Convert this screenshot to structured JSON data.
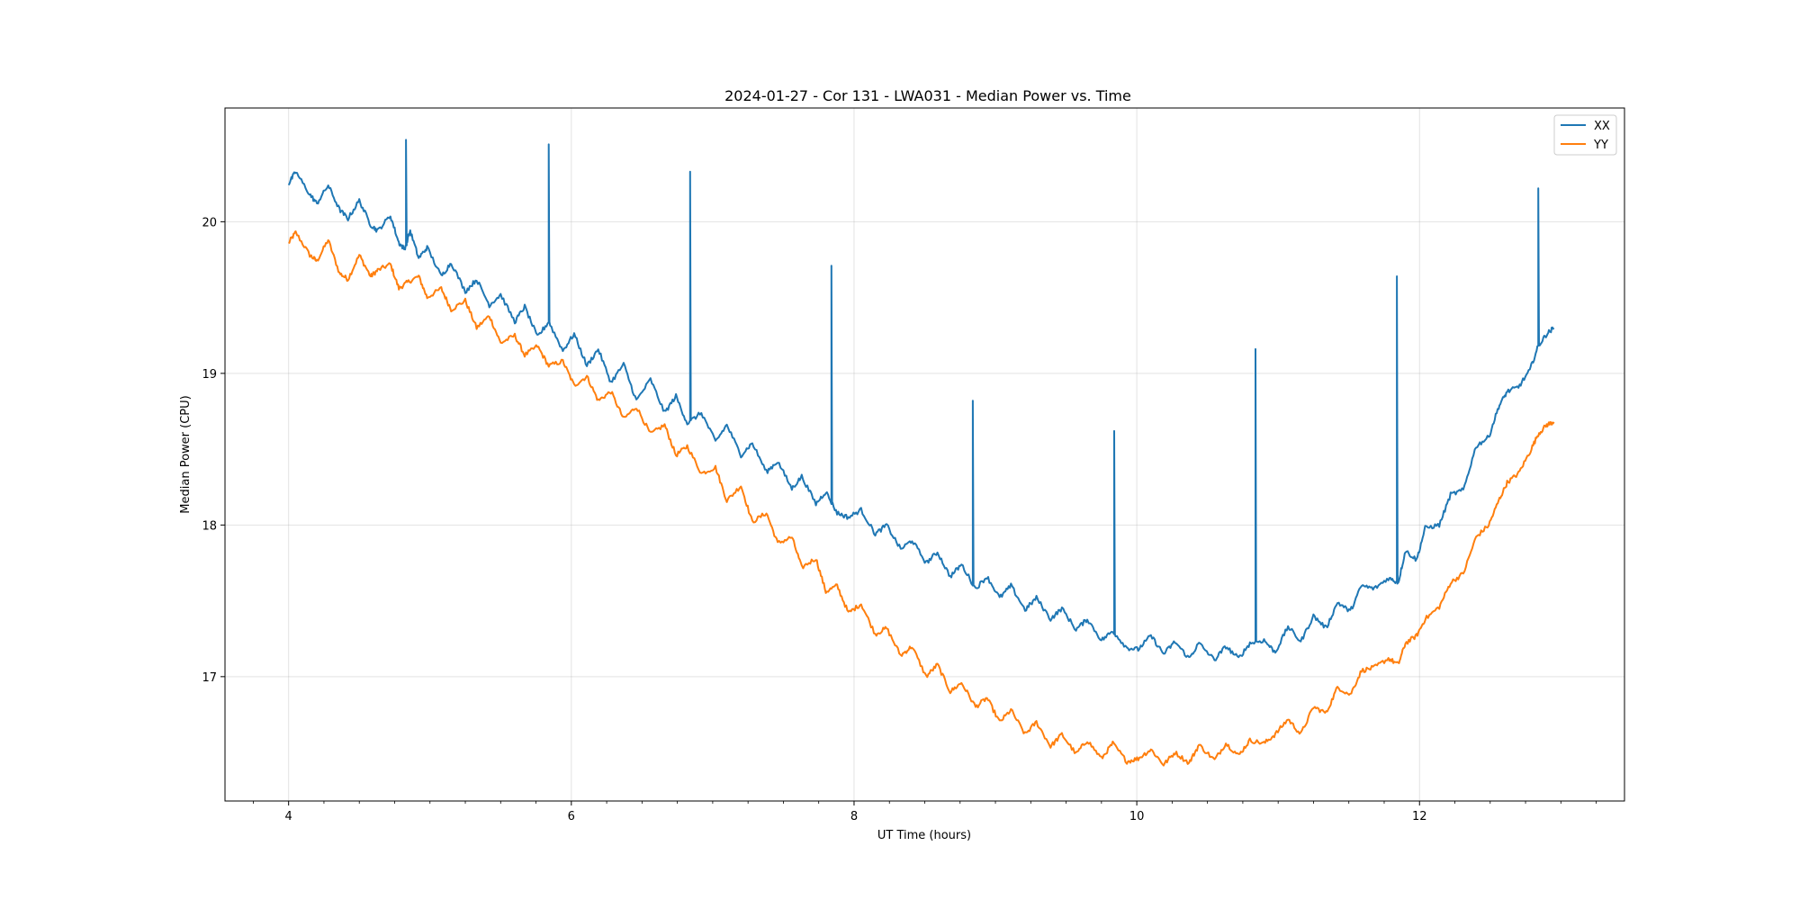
{
  "chart_data": {
    "type": "line",
    "title": "2024-01-27 - Cor 131 - LWA031 - Median Power vs. Time",
    "xlabel": "UT Time (hours)",
    "ylabel": "Median Power (CPU)",
    "xlim": [
      3.55,
      13.45
    ],
    "ylim": [
      16.18,
      20.75
    ],
    "xticks": [
      4,
      6,
      8,
      10,
      12
    ],
    "xtick_labels": [
      "4",
      "6",
      "8",
      "10",
      "12"
    ],
    "yticks": [
      17,
      18,
      19,
      20
    ],
    "ytick_labels": [
      "17",
      "18",
      "19",
      "20"
    ],
    "grid": true,
    "legend_position": "top-right",
    "series": [
      {
        "name": "XX",
        "color": "#1f77b4",
        "points": [
          [
            4.0,
            20.25
          ],
          [
            4.05,
            20.33
          ],
          [
            4.15,
            20.18
          ],
          [
            4.2,
            20.12
          ],
          [
            4.28,
            20.24
          ],
          [
            4.36,
            20.08
          ],
          [
            4.42,
            20.02
          ],
          [
            4.5,
            20.14
          ],
          [
            4.58,
            19.98
          ],
          [
            4.63,
            19.94
          ],
          [
            4.72,
            20.04
          ],
          [
            4.78,
            19.86
          ],
          [
            4.82,
            19.82
          ],
          [
            4.86,
            19.94
          ],
          [
            4.92,
            19.76
          ],
          [
            4.98,
            19.83
          ],
          [
            5.08,
            19.64
          ],
          [
            5.15,
            19.73
          ],
          [
            5.25,
            19.54
          ],
          [
            5.33,
            19.62
          ],
          [
            5.42,
            19.45
          ],
          [
            5.5,
            19.52
          ],
          [
            5.6,
            19.34
          ],
          [
            5.67,
            19.44
          ],
          [
            5.76,
            19.24
          ],
          [
            5.84,
            19.34
          ],
          [
            5.94,
            19.15
          ],
          [
            6.02,
            19.26
          ],
          [
            6.11,
            19.05
          ],
          [
            6.19,
            19.16
          ],
          [
            6.28,
            18.94
          ],
          [
            6.37,
            19.06
          ],
          [
            6.46,
            18.82
          ],
          [
            6.56,
            18.96
          ],
          [
            6.66,
            18.74
          ],
          [
            6.74,
            18.85
          ],
          [
            6.82,
            18.67
          ],
          [
            6.92,
            18.74
          ],
          [
            7.02,
            18.55
          ],
          [
            7.1,
            18.66
          ],
          [
            7.2,
            18.46
          ],
          [
            7.28,
            18.54
          ],
          [
            7.38,
            18.35
          ],
          [
            7.46,
            18.42
          ],
          [
            7.56,
            18.24
          ],
          [
            7.63,
            18.32
          ],
          [
            7.73,
            18.14
          ],
          [
            7.8,
            18.22
          ],
          [
            7.88,
            18.08
          ],
          [
            7.96,
            18.05
          ],
          [
            8.05,
            18.1
          ],
          [
            8.15,
            17.94
          ],
          [
            8.23,
            18.0
          ],
          [
            8.33,
            17.84
          ],
          [
            8.41,
            17.9
          ],
          [
            8.51,
            17.75
          ],
          [
            8.59,
            17.82
          ],
          [
            8.68,
            17.66
          ],
          [
            8.76,
            17.74
          ],
          [
            8.86,
            17.58
          ],
          [
            8.94,
            17.66
          ],
          [
            9.03,
            17.52
          ],
          [
            9.11,
            17.6
          ],
          [
            9.21,
            17.44
          ],
          [
            9.29,
            17.52
          ],
          [
            9.39,
            17.38
          ],
          [
            9.47,
            17.45
          ],
          [
            9.57,
            17.31
          ],
          [
            9.65,
            17.38
          ],
          [
            9.75,
            17.24
          ],
          [
            9.83,
            17.3
          ],
          [
            9.93,
            17.19
          ],
          [
            10.01,
            17.18
          ],
          [
            10.1,
            17.27
          ],
          [
            10.19,
            17.15
          ],
          [
            10.27,
            17.23
          ],
          [
            10.37,
            17.12
          ],
          [
            10.44,
            17.22
          ],
          [
            10.55,
            17.11
          ],
          [
            10.63,
            17.2
          ],
          [
            10.72,
            17.12
          ],
          [
            10.8,
            17.22
          ],
          [
            10.9,
            17.24
          ],
          [
            10.98,
            17.16
          ],
          [
            11.07,
            17.33
          ],
          [
            11.16,
            17.23
          ],
          [
            11.25,
            17.4
          ],
          [
            11.34,
            17.32
          ],
          [
            11.42,
            17.49
          ],
          [
            11.51,
            17.43
          ],
          [
            11.59,
            17.6
          ],
          [
            11.68,
            17.58
          ],
          [
            11.78,
            17.65
          ],
          [
            11.85,
            17.62
          ],
          [
            11.9,
            17.83
          ],
          [
            11.98,
            17.77
          ],
          [
            12.04,
            17.98
          ],
          [
            12.14,
            18.0
          ],
          [
            12.22,
            18.2
          ],
          [
            12.31,
            18.23
          ],
          [
            12.4,
            18.52
          ],
          [
            12.49,
            18.58
          ],
          [
            12.56,
            18.78
          ],
          [
            12.62,
            18.88
          ],
          [
            12.7,
            18.91
          ],
          [
            12.78,
            19.02
          ],
          [
            12.84,
            19.18
          ],
          [
            12.9,
            19.26
          ],
          [
            12.95,
            19.3
          ]
        ],
        "spikes": [
          [
            4.83,
            20.54
          ],
          [
            5.84,
            20.51
          ],
          [
            6.84,
            20.33
          ],
          [
            7.84,
            19.71
          ],
          [
            8.84,
            18.82
          ],
          [
            9.84,
            18.62
          ],
          [
            10.84,
            19.16
          ],
          [
            11.84,
            19.64
          ],
          [
            12.84,
            20.22
          ]
        ]
      },
      {
        "name": "YY",
        "color": "#ff7f0e",
        "points": [
          [
            4.0,
            19.86
          ],
          [
            4.05,
            19.93
          ],
          [
            4.15,
            19.78
          ],
          [
            4.2,
            19.74
          ],
          [
            4.28,
            19.88
          ],
          [
            4.36,
            19.66
          ],
          [
            4.42,
            19.62
          ],
          [
            4.5,
            19.78
          ],
          [
            4.58,
            19.64
          ],
          [
            4.63,
            19.68
          ],
          [
            4.72,
            19.72
          ],
          [
            4.78,
            19.56
          ],
          [
            4.84,
            19.6
          ],
          [
            4.92,
            19.64
          ],
          [
            4.98,
            19.5
          ],
          [
            5.08,
            19.56
          ],
          [
            5.15,
            19.42
          ],
          [
            5.25,
            19.48
          ],
          [
            5.33,
            19.3
          ],
          [
            5.42,
            19.38
          ],
          [
            5.5,
            19.2
          ],
          [
            5.6,
            19.25
          ],
          [
            5.67,
            19.12
          ],
          [
            5.76,
            19.18
          ],
          [
            5.84,
            19.05
          ],
          [
            5.94,
            19.08
          ],
          [
            6.02,
            18.92
          ],
          [
            6.11,
            18.98
          ],
          [
            6.19,
            18.82
          ],
          [
            6.28,
            18.88
          ],
          [
            6.37,
            18.7
          ],
          [
            6.46,
            18.78
          ],
          [
            6.56,
            18.6
          ],
          [
            6.66,
            18.66
          ],
          [
            6.74,
            18.46
          ],
          [
            6.82,
            18.52
          ],
          [
            6.92,
            18.34
          ],
          [
            7.02,
            18.38
          ],
          [
            7.1,
            18.16
          ],
          [
            7.2,
            18.26
          ],
          [
            7.28,
            18.02
          ],
          [
            7.38,
            18.08
          ],
          [
            7.46,
            17.88
          ],
          [
            7.56,
            17.92
          ],
          [
            7.63,
            17.72
          ],
          [
            7.73,
            17.78
          ],
          [
            7.8,
            17.56
          ],
          [
            7.88,
            17.6
          ],
          [
            7.96,
            17.42
          ],
          [
            8.05,
            17.48
          ],
          [
            8.15,
            17.28
          ],
          [
            8.23,
            17.32
          ],
          [
            8.33,
            17.14
          ],
          [
            8.41,
            17.2
          ],
          [
            8.51,
            17.0
          ],
          [
            8.59,
            17.08
          ],
          [
            8.68,
            16.9
          ],
          [
            8.76,
            16.96
          ],
          [
            8.86,
            16.8
          ],
          [
            8.94,
            16.86
          ],
          [
            9.03,
            16.7
          ],
          [
            9.11,
            16.78
          ],
          [
            9.21,
            16.62
          ],
          [
            9.29,
            16.7
          ],
          [
            9.39,
            16.54
          ],
          [
            9.47,
            16.62
          ],
          [
            9.57,
            16.49
          ],
          [
            9.65,
            16.58
          ],
          [
            9.75,
            16.46
          ],
          [
            9.83,
            16.56
          ],
          [
            9.93,
            16.44
          ],
          [
            10.01,
            16.46
          ],
          [
            10.1,
            16.52
          ],
          [
            10.19,
            16.42
          ],
          [
            10.27,
            16.5
          ],
          [
            10.37,
            16.43
          ],
          [
            10.44,
            16.55
          ],
          [
            10.55,
            16.45
          ],
          [
            10.63,
            16.56
          ],
          [
            10.72,
            16.48
          ],
          [
            10.8,
            16.58
          ],
          [
            10.9,
            16.56
          ],
          [
            10.98,
            16.62
          ],
          [
            11.07,
            16.72
          ],
          [
            11.16,
            16.62
          ],
          [
            11.25,
            16.8
          ],
          [
            11.34,
            16.76
          ],
          [
            11.42,
            16.93
          ],
          [
            11.51,
            16.88
          ],
          [
            11.59,
            17.04
          ],
          [
            11.68,
            17.06
          ],
          [
            11.78,
            17.12
          ],
          [
            11.85,
            17.08
          ],
          [
            11.9,
            17.22
          ],
          [
            11.98,
            17.27
          ],
          [
            12.04,
            17.38
          ],
          [
            12.14,
            17.46
          ],
          [
            12.22,
            17.62
          ],
          [
            12.31,
            17.68
          ],
          [
            12.4,
            17.92
          ],
          [
            12.49,
            18.0
          ],
          [
            12.56,
            18.16
          ],
          [
            12.62,
            18.28
          ],
          [
            12.7,
            18.34
          ],
          [
            12.78,
            18.48
          ],
          [
            12.84,
            18.6
          ],
          [
            12.9,
            18.66
          ],
          [
            12.95,
            18.68
          ]
        ],
        "spikes": []
      }
    ]
  }
}
